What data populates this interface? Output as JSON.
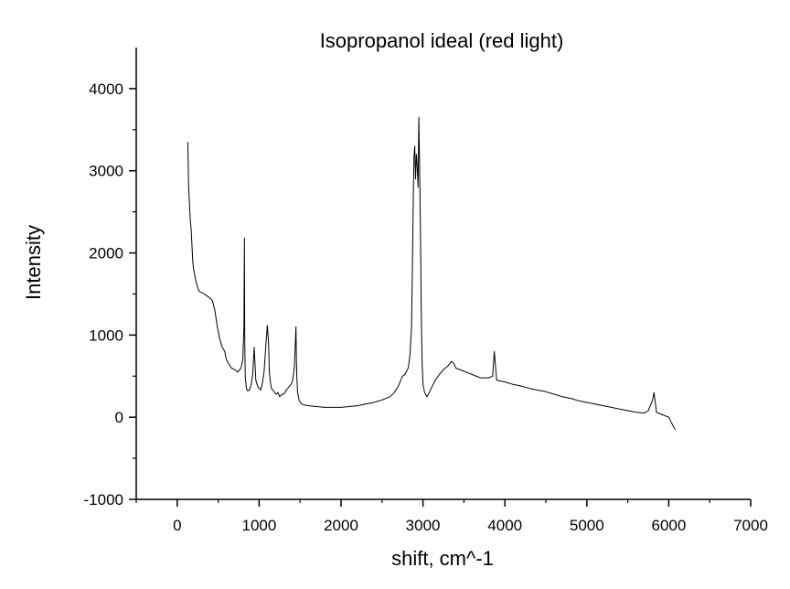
{
  "chart_data": {
    "type": "line",
    "title": "Isopropanol ideal (red light)",
    "xlabel": "shift, cm^-1",
    "ylabel": "Intensity",
    "xlim": [
      -500,
      7000
    ],
    "ylim": [
      -1000,
      4500
    ],
    "x_ticks": [
      0,
      1000,
      2000,
      3000,
      4000,
      5000,
      6000,
      7000
    ],
    "y_ticks": [
      -1000,
      0,
      1000,
      2000,
      3000,
      4000
    ],
    "grid": false,
    "legend": "none",
    "colors": {
      "line": "#000000",
      "axis": "#000000",
      "background": "#ffffff"
    },
    "series": [
      {
        "x": [
          130,
          140,
          150,
          160,
          170,
          180,
          190,
          200,
          210,
          220,
          230,
          250,
          270,
          300,
          330,
          360,
          400,
          430,
          460,
          490,
          500,
          520,
          550,
          580,
          600,
          630,
          660,
          700,
          740,
          780,
          800,
          815,
          820,
          825,
          830,
          845,
          860,
          880,
          900,
          920,
          940,
          960,
          975,
          990,
          1005,
          1020,
          1040,
          1060,
          1080,
          1100,
          1115,
          1125,
          1135,
          1150,
          1170,
          1190,
          1210,
          1230,
          1250,
          1270,
          1290,
          1310,
          1330,
          1350,
          1370,
          1390,
          1410,
          1430,
          1450,
          1455,
          1460,
          1470,
          1490,
          1520,
          1550,
          1600,
          1700,
          1800,
          1900,
          2000,
          2100,
          2200,
          2300,
          2400,
          2500,
          2600,
          2650,
          2700,
          2750,
          2780,
          2800,
          2820,
          2840,
          2860,
          2870,
          2880,
          2890,
          2900,
          2910,
          2920,
          2930,
          2940,
          2950,
          2960,
          2970,
          2980,
          2990,
          3000,
          3020,
          3050,
          3100,
          3150,
          3200,
          3250,
          3300,
          3350,
          3380,
          3400,
          3450,
          3500,
          3600,
          3700,
          3800,
          3850,
          3870,
          3900,
          4000,
          4100,
          4200,
          4300,
          4400,
          4500,
          4600,
          4700,
          4800,
          4900,
          5000,
          5100,
          5200,
          5300,
          5400,
          5500,
          5600,
          5700,
          5750,
          5800,
          5820,
          5850,
          5900,
          5950,
          6000,
          6050,
          6080
        ],
        "y": [
          3350,
          2800,
          2600,
          2400,
          2300,
          2100,
          1900,
          1800,
          1750,
          1700,
          1650,
          1580,
          1530,
          1520,
          1500,
          1480,
          1450,
          1420,
          1300,
          1100,
          1050,
          950,
          850,
          800,
          700,
          650,
          600,
          580,
          550,
          600,
          700,
          1100,
          2180,
          900,
          500,
          350,
          320,
          330,
          380,
          500,
          850,
          450,
          400,
          360,
          350,
          330,
          420,
          550,
          850,
          1120,
          900,
          550,
          450,
          350,
          330,
          300,
          280,
          300,
          250,
          270,
          280,
          290,
          330,
          350,
          380,
          400,
          450,
          600,
          1100,
          700,
          500,
          300,
          200,
          160,
          150,
          140,
          130,
          120,
          120,
          120,
          130,
          140,
          160,
          180,
          210,
          250,
          300,
          380,
          500,
          520,
          560,
          600,
          750,
          1100,
          1800,
          2500,
          3150,
          3300,
          2900,
          3200,
          3050,
          2800,
          3650,
          2950,
          2200,
          1200,
          650,
          400,
          300,
          250,
          350,
          450,
          520,
          580,
          620,
          680,
          650,
          600,
          580,
          560,
          520,
          480,
          480,
          500,
          800,
          450,
          430,
          400,
          380,
          350,
          330,
          310,
          280,
          250,
          230,
          200,
          180,
          160,
          140,
          120,
          100,
          80,
          60,
          50,
          80,
          200,
          300,
          60,
          40,
          20,
          0,
          -100,
          -150
        ]
      }
    ]
  }
}
